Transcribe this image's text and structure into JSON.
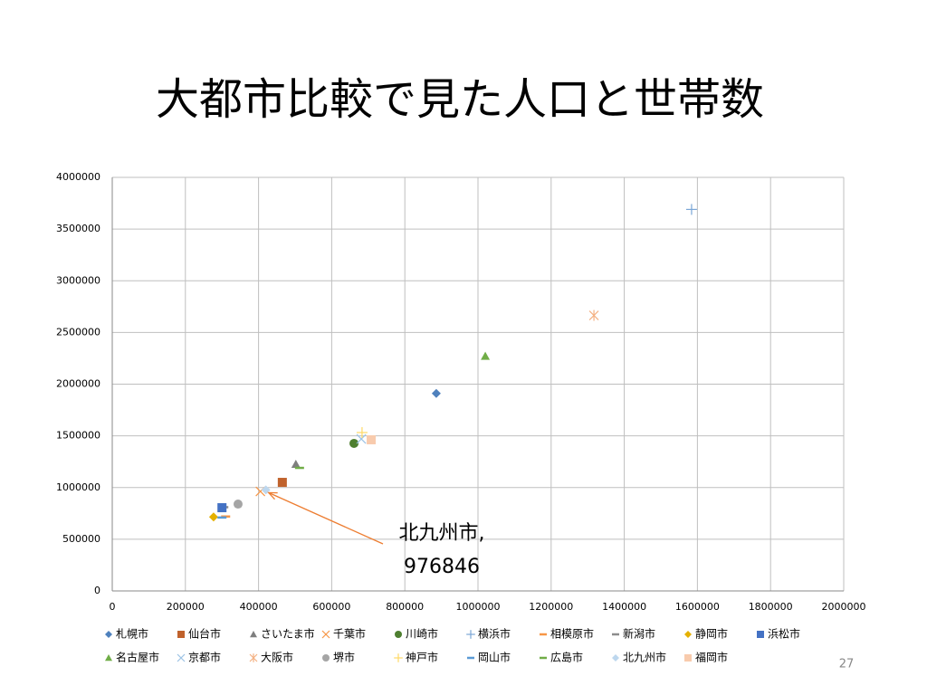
{
  "chart_data": {
    "type": "scatter",
    "title": "大都市比較で見た人口と世帯数",
    "xlim": [
      0,
      2000000
    ],
    "xticks": [
      0,
      200000,
      400000,
      600000,
      800000,
      1000000,
      1200000,
      1400000,
      1600000,
      1800000,
      2000000
    ],
    "ylim": [
      0,
      4000000
    ],
    "yticks": [
      0,
      500000,
      1000000,
      1500000,
      2000000,
      2500000,
      3000000,
      3500000,
      4000000
    ],
    "grid": true,
    "legend": "bottom",
    "series": [
      {
        "name": "札幌市",
        "color": "#4f81bd",
        "marker": "diamond",
        "x": [
          886000
        ],
        "values": [
          1910000
        ]
      },
      {
        "name": "仙台市",
        "color": "#c0622c",
        "marker": "square",
        "x": [
          465000
        ],
        "values": [
          1050000
        ]
      },
      {
        "name": "さいたま市",
        "color": "#7f7f7f",
        "marker": "triangle",
        "x": [
          502000
        ],
        "values": [
          1225000
        ]
      },
      {
        "name": "千葉市",
        "color": "#f79646",
        "marker": "x",
        "x": [
          405000
        ],
        "values": [
          962000
        ]
      },
      {
        "name": "川崎市",
        "color": "#4e7f30",
        "marker": "circle",
        "x": [
          661000
        ],
        "values": [
          1427000
        ]
      },
      {
        "name": "横浜市",
        "color": "#7aa6d6",
        "marker": "plus",
        "x": [
          1584000
        ],
        "values": [
          3690000
        ]
      },
      {
        "name": "相模原市",
        "color": "#f79646",
        "marker": "dash",
        "x": [
          310000
        ],
        "values": [
          720000
        ]
      },
      {
        "name": "新潟市",
        "color": "#8c8c8c",
        "marker": "dash",
        "x": [
          305000
        ],
        "values": [
          810000
        ]
      },
      {
        "name": "静岡市",
        "color": "#e5b100",
        "marker": "diamond",
        "x": [
          277000
        ],
        "values": [
          716000
        ]
      },
      {
        "name": "浜松市",
        "color": "#4472c4",
        "marker": "square",
        "x": [
          300000
        ],
        "values": [
          805000
        ]
      },
      {
        "name": "名古屋市",
        "color": "#70ad47",
        "marker": "triangle",
        "x": [
          1020000
        ],
        "values": [
          2270000
        ]
      },
      {
        "name": "京都市",
        "color": "#9dc3e6",
        "marker": "x",
        "x": [
          681000
        ],
        "values": [
          1470000
        ]
      },
      {
        "name": "大阪市",
        "color": "#f4b183",
        "marker": "asterisk",
        "x": [
          1317000
        ],
        "values": [
          2665000
        ]
      },
      {
        "name": "堺市",
        "color": "#a5a5a5",
        "marker": "circle",
        "x": [
          344000
        ],
        "values": [
          840000
        ]
      },
      {
        "name": "神戸市",
        "color": "#ffd966",
        "marker": "plus",
        "x": [
          683000
        ],
        "values": [
          1532000
        ]
      },
      {
        "name": "岡山市",
        "color": "#5b9bd5",
        "marker": "dash",
        "x": [
          300000
        ],
        "values": [
          710000
        ]
      },
      {
        "name": "広島市",
        "color": "#70ad47",
        "marker": "dash",
        "x": [
          512000
        ],
        "values": [
          1190000
        ]
      },
      {
        "name": "北九州市",
        "color": "#bdd7ee",
        "marker": "diamond",
        "x": [
          420000
        ],
        "values": [
          976846
        ]
      },
      {
        "name": "福岡市",
        "color": "#f8cbad",
        "marker": "square",
        "x": [
          708000
        ],
        "values": [
          1462000
        ]
      }
    ],
    "annotation": {
      "text": [
        "北九州市,",
        "976846"
      ],
      "color": "#ed7d31"
    },
    "page_number": "27"
  }
}
